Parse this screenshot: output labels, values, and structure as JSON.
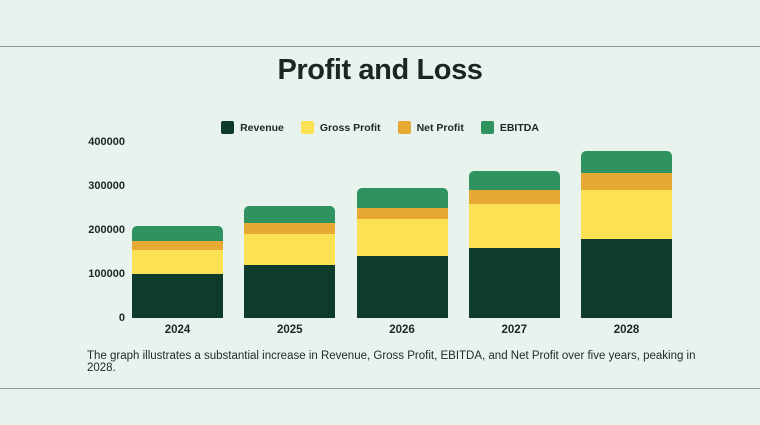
{
  "page": {
    "title": "Profit and Loss",
    "caption": "The graph illustrates a substantial increase in Revenue, Gross Profit, EBITDA, and Net Profit over five years, peaking in 2028.",
    "background_color": "#e9f3ed",
    "text_color": "#1d2721",
    "rule_color": "#8e9a93"
  },
  "chart_data": {
    "type": "bar",
    "stacked": true,
    "title": "Profit and Loss",
    "xlabel": "",
    "ylabel": "",
    "categories": [
      "2024",
      "2025",
      "2026",
      "2027",
      "2028"
    ],
    "series": [
      {
        "name": "Revenue",
        "color": "#0e3c2a",
        "values": [
          100000,
          120000,
          140000,
          160000,
          180000
        ]
      },
      {
        "name": "Gross Profit",
        "color": "#fbe153",
        "values": [
          55000,
          70000,
          85000,
          100000,
          110000
        ]
      },
      {
        "name": "Net Profit",
        "color": "#e6a934",
        "values": [
          20000,
          25000,
          25000,
          30000,
          40000
        ]
      },
      {
        "name": "EBITDA",
        "color": "#2f9360",
        "values": [
          35000,
          40000,
          45000,
          45000,
          50000
        ]
      }
    ],
    "totals": [
      210000,
      255000,
      295000,
      335000,
      380000
    ],
    "ylim": [
      0,
      400000
    ],
    "yticks": [
      0,
      100000,
      200000,
      300000,
      400000
    ],
    "grid": false,
    "legend_position": "top"
  }
}
